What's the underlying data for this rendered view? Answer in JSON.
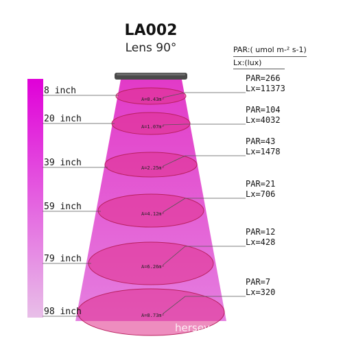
{
  "title": "LA002",
  "subtitle": "Lens 90°",
  "units": {
    "par": "PAR:( umol m-² s-1)",
    "lx": "Lx:(lux)"
  },
  "levels": [
    {
      "distance": "8 inch",
      "area": "A=0.43m²",
      "par": "PAR=266",
      "lx": "Lx=11373"
    },
    {
      "distance": "20 inch",
      "area": "A=1.07m²",
      "par": "PAR=104",
      "lx": "Lx=4032"
    },
    {
      "distance": "39 inch",
      "area": "A=2.25m²",
      "par": "PAR=43",
      "lx": "Lx=1478"
    },
    {
      "distance": "59 inch",
      "area": "A=4.12m²",
      "par": "PAR=21",
      "lx": "Lx=706"
    },
    {
      "distance": "79 inch",
      "area": "A=6.26m²",
      "par": "PAR=12",
      "lx": "Lx=428"
    },
    {
      "distance": "98 inch",
      "area": "A=8.73m²",
      "par": "PAR=7",
      "lx": "Lx=320"
    }
  ],
  "watermark": "herseyqin.store.bossgoo.com",
  "colors": {
    "beam_top": "#e020c0",
    "beam_bottom": "#e878e0",
    "ellipse": "#e01a6a",
    "bar_top": "#e000d8",
    "bar_bottom": "#e8b8e8"
  }
}
